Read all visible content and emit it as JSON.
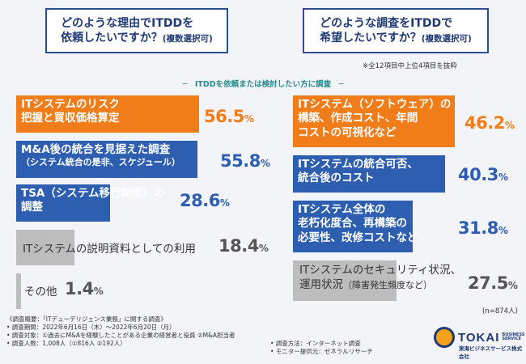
{
  "questions": {
    "left_main": "どのような理由でITDDを",
    "left_main2": "依頼したいですか？",
    "left_small": "(複数選択可)",
    "right_main": "どのような調査をITDDで",
    "right_main2": "希望したいですか？",
    "right_small": "(複数選択可)"
  },
  "note_top": "※全12項目中上位4項目を抜粋",
  "center_label": "─　ITDDを依頼または検討したい方に調査　─",
  "chart_data": [
    {
      "type": "bar",
      "categories": [
        "ITシステムのリスク把握と買収価格算定",
        "M&A後の統合を見据えた調査（システム統合の是非、スケジュール）",
        "TSA（システム移行期間）の調整",
        "ITシステムの説明資料としての利用",
        "その他"
      ],
      "values": [
        56.5,
        55.8,
        28.6,
        18.4,
        1.4
      ],
      "unit": "%",
      "colors": [
        "#f07d1a",
        "#2d5eb0",
        "#2d5eb0",
        "#bdbdbd",
        "#bdbdbd"
      ],
      "xlim": [
        0,
        100
      ]
    },
    {
      "type": "bar",
      "categories": [
        "ITシステム（ソフトウェア）の構築、作成コスト、年間コストの可視化など",
        "ITシステムの統合可否、統合後のコスト",
        "ITシステム全体の老朽化度合、再構築の必要性、改修コストなど",
        "ITシステムのセキュリティ状況、運用状況（障害発生頻度など）"
      ],
      "values": [
        46.2,
        40.3,
        31.8,
        27.5
      ],
      "unit": "%",
      "colors": [
        "#f07d1a",
        "#2d5eb0",
        "#2d5eb0",
        "#bdbdbd"
      ],
      "xlim": [
        0,
        100
      ]
    }
  ],
  "labels": {
    "l1a": "ITシステムのリスク",
    "l1b": "把握と買収価格算定",
    "l2a": "M&A後の統合を見据えた調査",
    "l2b": "（システム統合の是非、スケジュール）",
    "l3a": "TSA（システム移行期間）の",
    "l3b": "調整",
    "l4": "ITシステムの説明資料としての利用",
    "l5": "その他",
    "r1a": "ITシステム（ソフトウェア）の",
    "r1b": "構築、作成コスト、年間",
    "r1c": "コストの可視化など",
    "r2a": "ITシステムの統合可否、",
    "r2b": "統合後のコスト",
    "r3a": "ITシステム全体の",
    "r3b": "老朽化度合、再構築の",
    "r3c": "必要性、改修コストなど",
    "r4a": "ITシステムのセキュリティ状況、",
    "r4b": "運用状況",
    "r4c": "（障害発生頻度など）"
  },
  "values_text": {
    "l1": "56.5",
    "l2": "55.8",
    "l3": "28.6",
    "l4": "18.4",
    "l5": "1.4",
    "r1": "46.2",
    "r2": "40.3",
    "r3": "31.8",
    "r4": "27.5",
    "pct": "%"
  },
  "n_note": "(n=874人)",
  "survey": {
    "line1": "《調査概要：「ITデューデリジェンス業務」に関する調査》",
    "line2": "• 調査期間：2022年6月16日（木）～2022年6月20日（月）",
    "line3": "• 調査対象：①過去にM&Aを経験したことがある企業の経営者と役員 ②M&A担当者",
    "line4": "• 調査人数：1,008人（①816人 ②192人）",
    "line5": "• 調査方法：インターネット調査",
    "line6": "• モニター提供元：ゼネラルリサーチ"
  },
  "logo": {
    "main": "TOKAI",
    "sub1": "BUSINESS",
    "sub2": "SERVICE",
    "jp": "東海ビジネスサービス株式会社"
  }
}
